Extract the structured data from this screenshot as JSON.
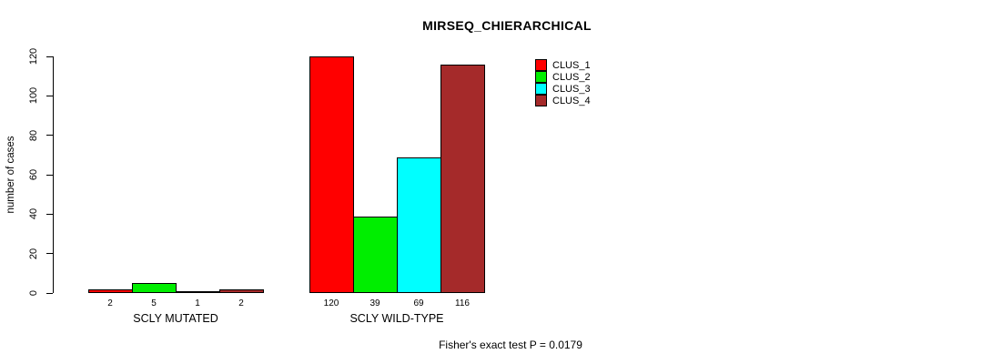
{
  "chart_data": {
    "type": "bar",
    "title": "MIRSEQ_CHIERARCHICAL",
    "ylabel": "number of cases",
    "xlabel": "",
    "ylim": [
      0,
      120
    ],
    "yticks": [
      0,
      20,
      40,
      60,
      80,
      100,
      120
    ],
    "categories": [
      "SCLY MUTATED",
      "SCLY WILD-TYPE"
    ],
    "series": [
      {
        "name": "CLUS_1",
        "color": "#ff0000",
        "values": [
          2,
          120
        ]
      },
      {
        "name": "CLUS_2",
        "color": "#00ee00",
        "values": [
          5,
          39
        ]
      },
      {
        "name": "CLUS_3",
        "color": "#00ffff",
        "values": [
          1,
          69
        ]
      },
      {
        "name": "CLUS_4",
        "color": "#a52a2a",
        "values": [
          2,
          116
        ]
      }
    ],
    "bar_value_labels_shown": true,
    "legend_position": "top-right",
    "grid": false,
    "annotation": "Fisher's exact test P = 0.0179"
  }
}
